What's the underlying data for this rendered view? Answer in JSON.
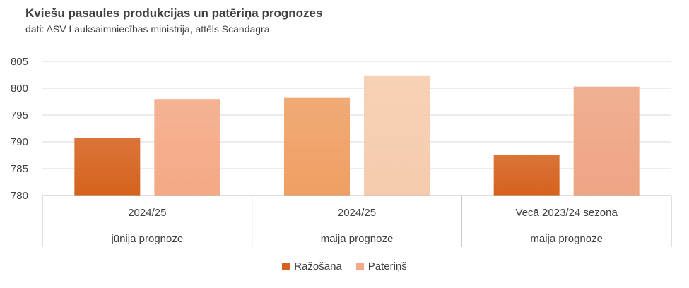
{
  "title": "Kviešu pasaules produkcijas un patēriņa prognozes",
  "subtitle": "dati: ASV Lauksaimniecības ministrija, attēls Scandagra",
  "chart_data": {
    "type": "bar",
    "categories": [
      {
        "label": "2024/25",
        "sublabel": "jūnija prognoze"
      },
      {
        "label": "2024/25",
        "sublabel": "maija prognoze"
      },
      {
        "label": "Vecā 2023/24 sezona",
        "sublabel": "maija prognoze"
      }
    ],
    "series": [
      {
        "name": "Ražošana",
        "values": [
          790.7,
          798.2,
          787.6
        ],
        "colors": [
          "#d5621d",
          "#ef9f63",
          "#d5621d"
        ],
        "legend_color": "#d5621d"
      },
      {
        "name": "Patēriņš",
        "values": [
          798.0,
          802.4,
          800.3
        ],
        "colors": [
          "#f4a985",
          "#f6cbad",
          "#eea584"
        ],
        "legend_color": "#f4a985"
      }
    ],
    "ylim": [
      780,
      805
    ],
    "yticks": [
      780,
      785,
      790,
      795,
      800,
      805
    ],
    "grid": true,
    "legend_position": "bottom"
  }
}
